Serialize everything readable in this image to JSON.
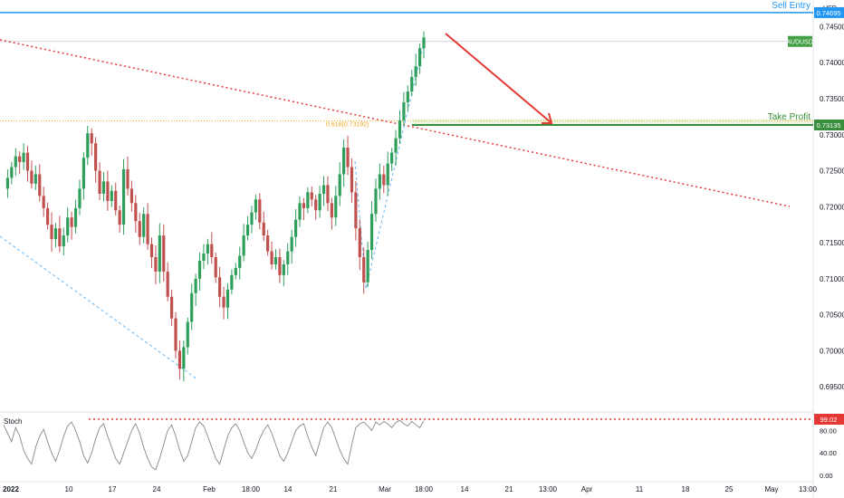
{
  "chart_data": {
    "type": "candlestick",
    "symbol": "AUDUSD",
    "currency": "USD",
    "y_axis": {
      "range": [
        0.6915,
        0.7487
      ],
      "ticks": [
        "0.74500",
        "0.74000",
        "0.73500",
        "0.73000",
        "0.72500",
        "0.72000",
        "0.71500",
        "0.71000",
        "0.70500",
        "0.70000",
        "0.69500"
      ]
    },
    "x_axis": {
      "ticks": [
        {
          "label": "2022",
          "bold": true
        },
        {
          "label": "10"
        },
        {
          "label": "17"
        },
        {
          "label": "24"
        },
        {
          "label": "Feb"
        },
        {
          "label": "18:00"
        },
        {
          "label": "14"
        },
        {
          "label": "21"
        },
        {
          "label": "Mar"
        },
        {
          "label": "18:00"
        },
        {
          "label": "14"
        },
        {
          "label": "21"
        },
        {
          "label": "13:00"
        },
        {
          "label": "Apr"
        },
        {
          "label": "11"
        },
        {
          "label": "18"
        },
        {
          "label": "25"
        },
        {
          "label": "May"
        },
        {
          "label": "13:00"
        }
      ]
    },
    "price_path": [
      0.7225,
      0.724,
      0.7255,
      0.727,
      0.7262,
      0.7275,
      0.725,
      0.7232,
      0.7245,
      0.7215,
      0.7198,
      0.7175,
      0.7155,
      0.717,
      0.7145,
      0.716,
      0.7185,
      0.7172,
      0.7198,
      0.7225,
      0.7268,
      0.7302,
      0.7288,
      0.725,
      0.7218,
      0.7235,
      0.7208,
      0.7222,
      0.7195,
      0.7175,
      0.7252,
      0.7225,
      0.7205,
      0.718,
      0.7158,
      0.719,
      0.7148,
      0.713,
      0.711,
      0.716,
      0.711,
      0.7075,
      0.7045,
      0.7,
      0.6975,
      0.7005,
      0.704,
      0.708,
      0.71,
      0.7125,
      0.7135,
      0.7148,
      0.713,
      0.7102,
      0.7075,
      0.706,
      0.7085,
      0.7105,
      0.7115,
      0.7132,
      0.716,
      0.7175,
      0.7192,
      0.721,
      0.7178,
      0.716,
      0.7138,
      0.712,
      0.713,
      0.7105,
      0.712,
      0.7138,
      0.7158,
      0.7182,
      0.7205,
      0.7198,
      0.722,
      0.721,
      0.7195,
      0.7218,
      0.723,
      0.7205,
      0.7185,
      0.7215,
      0.7245,
      0.7282,
      0.7255,
      0.722,
      0.717,
      0.713,
      0.7095,
      0.714,
      0.719,
      0.7225,
      0.7245,
      0.723,
      0.726,
      0.7275,
      0.7295,
      0.732,
      0.7345,
      0.736,
      0.738,
      0.7395,
      0.742,
      0.7435
    ],
    "stoch_path": [
      90,
      75,
      60,
      85,
      70,
      45,
      30,
      20,
      50,
      70,
      82,
      60,
      40,
      25,
      45,
      70,
      88,
      95,
      80,
      60,
      35,
      22,
      40,
      65,
      85,
      92,
      70,
      50,
      30,
      20,
      40,
      60,
      80,
      92,
      75,
      50,
      30,
      15,
      10,
      30,
      55,
      80,
      90,
      70,
      45,
      25,
      35,
      60,
      85,
      95,
      88,
      70,
      50,
      30,
      20,
      45,
      70,
      85,
      92,
      80,
      60,
      40,
      30,
      45,
      65,
      80,
      90,
      75,
      55,
      35,
      25,
      40,
      60,
      80,
      88,
      92,
      70,
      50,
      35,
      60,
      85,
      95,
      85,
      65,
      45,
      30,
      20,
      55,
      85,
      92,
      95,
      88,
      80,
      95,
      90,
      96,
      92,
      85,
      94,
      98,
      92,
      88,
      96,
      90,
      85,
      97
    ],
    "horizontal_levels": [
      {
        "name": "Sell Entry",
        "price_label": "0.74695",
        "color": "#2196f3"
      },
      {
        "name": "Take Profit",
        "price_label": "0.73135",
        "color": "#388e3c"
      },
      {
        "name": "fib",
        "price_label": "0.618(0.73192)",
        "color": "#f5a623"
      }
    ],
    "current_price_tag": {
      "label": "AUDUSD",
      "color": "#43a047"
    },
    "stochastic": {
      "name": "Stoch",
      "ticks": [
        "80.00",
        "40.00",
        "0.00"
      ],
      "level_label": "99.02",
      "level_color": "#e53935"
    },
    "trendline_color": "#e53935",
    "arrow_color": "#e53935",
    "up_color": "#2e9e5b",
    "down_color": "#c0504d"
  }
}
